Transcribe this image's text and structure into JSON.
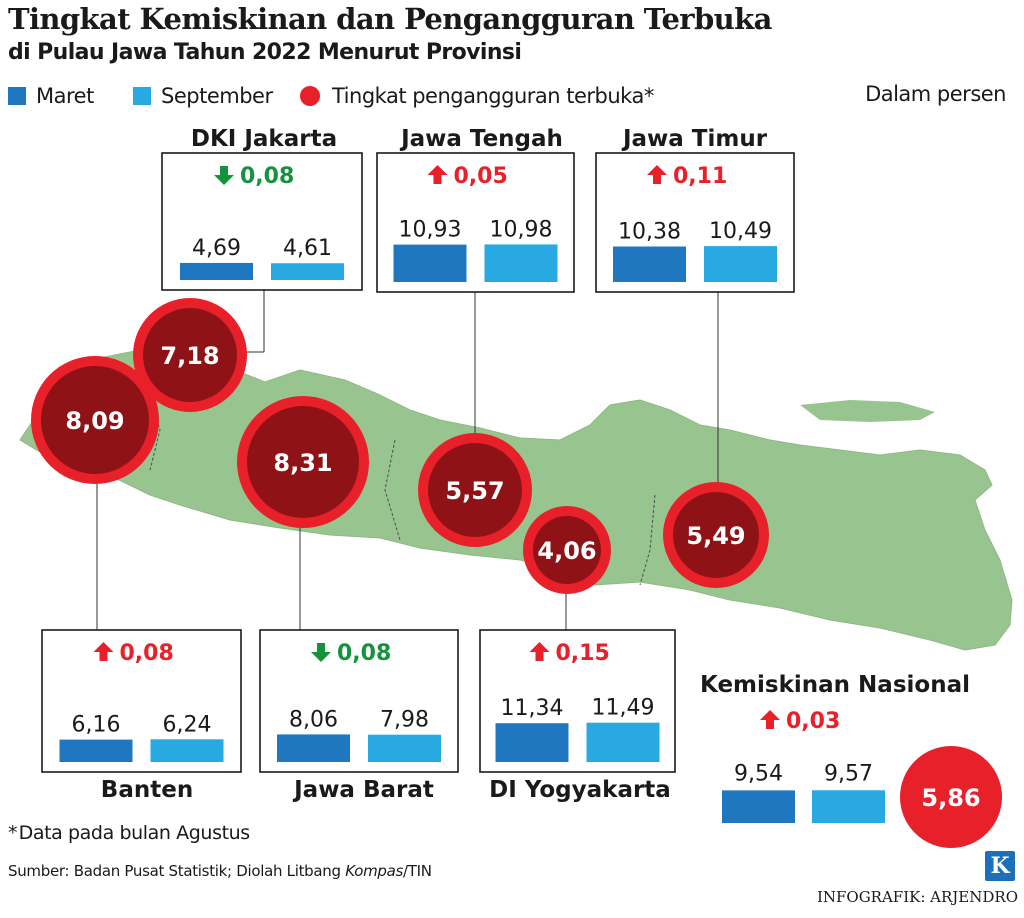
{
  "header": {
    "title": "Tingkat Kemiskinan dan Pengangguran Terbuka",
    "subtitle": "di Pulau Jawa Tahun 2022 Menurut Provinsi"
  },
  "legend": {
    "maret": "Maret",
    "september": "September",
    "unemployment": "Tingkat pengangguran terbuka*"
  },
  "unit_label": "Dalam persen",
  "colors": {
    "maret": "#1f78bf",
    "september": "#29a9e1",
    "unemployment_circle": "#e8202a",
    "unemployment_dark": "#7b1112",
    "map_land": "#98c58f",
    "up": "#e8202a",
    "down": "#16913c"
  },
  "chart_data": {
    "type": "bar",
    "series_names": [
      "Maret",
      "September"
    ],
    "provinces": [
      {
        "name": "DKI Jakarta",
        "maret": 4.69,
        "september": 4.61,
        "maret_label": "4,69",
        "september_label": "4,61",
        "change": "0,08",
        "direction": "down",
        "unemployment": 7.18,
        "unemployment_label": "7,18"
      },
      {
        "name": "Jawa Tengah",
        "maret": 10.93,
        "september": 10.98,
        "maret_label": "10,93",
        "september_label": "10,98",
        "change": "0,05",
        "direction": "up",
        "unemployment": 5.57,
        "unemployment_label": "5,57"
      },
      {
        "name": "Jawa Timur",
        "maret": 10.38,
        "september": 10.49,
        "maret_label": "10,38",
        "september_label": "10,49",
        "change": "0,11",
        "direction": "up",
        "unemployment": 5.49,
        "unemployment_label": "5,49"
      },
      {
        "name": "Banten",
        "maret": 6.16,
        "september": 6.24,
        "maret_label": "6,16",
        "september_label": "6,24",
        "change": "0,08",
        "direction": "up",
        "unemployment": 8.09,
        "unemployment_label": "8,09"
      },
      {
        "name": "Jawa Barat",
        "maret": 8.06,
        "september": 7.98,
        "maret_label": "8,06",
        "september_label": "7,98",
        "change": "0,08",
        "direction": "down",
        "unemployment": 8.31,
        "unemployment_label": "8,31"
      },
      {
        "name": "DI Yogyakarta",
        "maret": 11.34,
        "september": 11.49,
        "maret_label": "11,34",
        "september_label": "11,49",
        "change": "0,15",
        "direction": "up",
        "unemployment": 4.06,
        "unemployment_label": "4,06"
      }
    ],
    "national": {
      "name": "Kemiskinan Nasional",
      "maret": 9.54,
      "september": 9.57,
      "maret_label": "9,54",
      "september_label": "9,57",
      "change": "0,03",
      "direction": "up",
      "unemployment": 5.86,
      "unemployment_label": "5,86"
    }
  },
  "footnote": "Data pada bulan Agustus",
  "footnote_mark": "*",
  "source": {
    "prefix": "Sumber: Badan Pusat Statistik; Diolah Litbang ",
    "italic": "Kompas",
    "suffix": "/TIN"
  },
  "logo_letter": "K",
  "credit": "INFOGRAFIK: ARJENDRO"
}
